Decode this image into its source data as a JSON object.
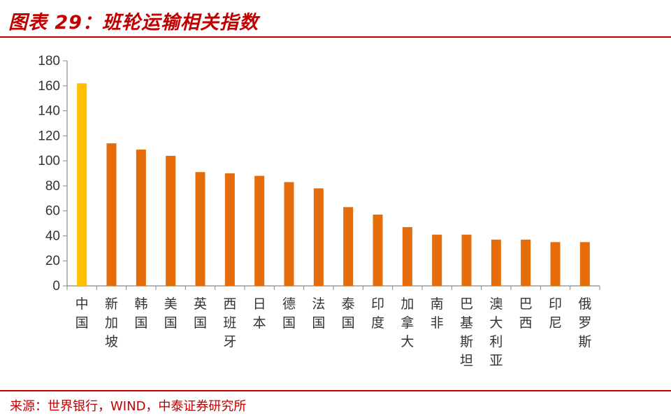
{
  "header": {
    "title": "图表 29：班轮运输相关指数"
  },
  "footer": {
    "source": "来源：世界银行，WIND，中泰证券研究所"
  },
  "colors": {
    "accent": "#c00000",
    "bar": "#e46c0a",
    "highlight": "#ffc000"
  },
  "chart_data": {
    "type": "bar",
    "title": "",
    "xlabel": "",
    "ylabel": "",
    "ylim": [
      0,
      180
    ],
    "yticks": [
      0,
      20,
      40,
      60,
      80,
      100,
      120,
      140,
      160,
      180
    ],
    "grid": false,
    "legend": "none",
    "categories": [
      "中国",
      "新加坡",
      "韩国",
      "美国",
      "英国",
      "西班牙",
      "日本",
      "德国",
      "法国",
      "泰国",
      "印度",
      "加拿大",
      "南非",
      "巴基斯坦",
      "澳大利亚",
      "巴西",
      "印尼",
      "俄罗斯"
    ],
    "values": [
      162,
      114,
      109,
      104,
      91,
      90,
      88,
      83,
      78,
      63,
      57,
      47,
      41,
      41,
      37,
      37,
      35,
      35
    ],
    "highlight_index": 0
  }
}
